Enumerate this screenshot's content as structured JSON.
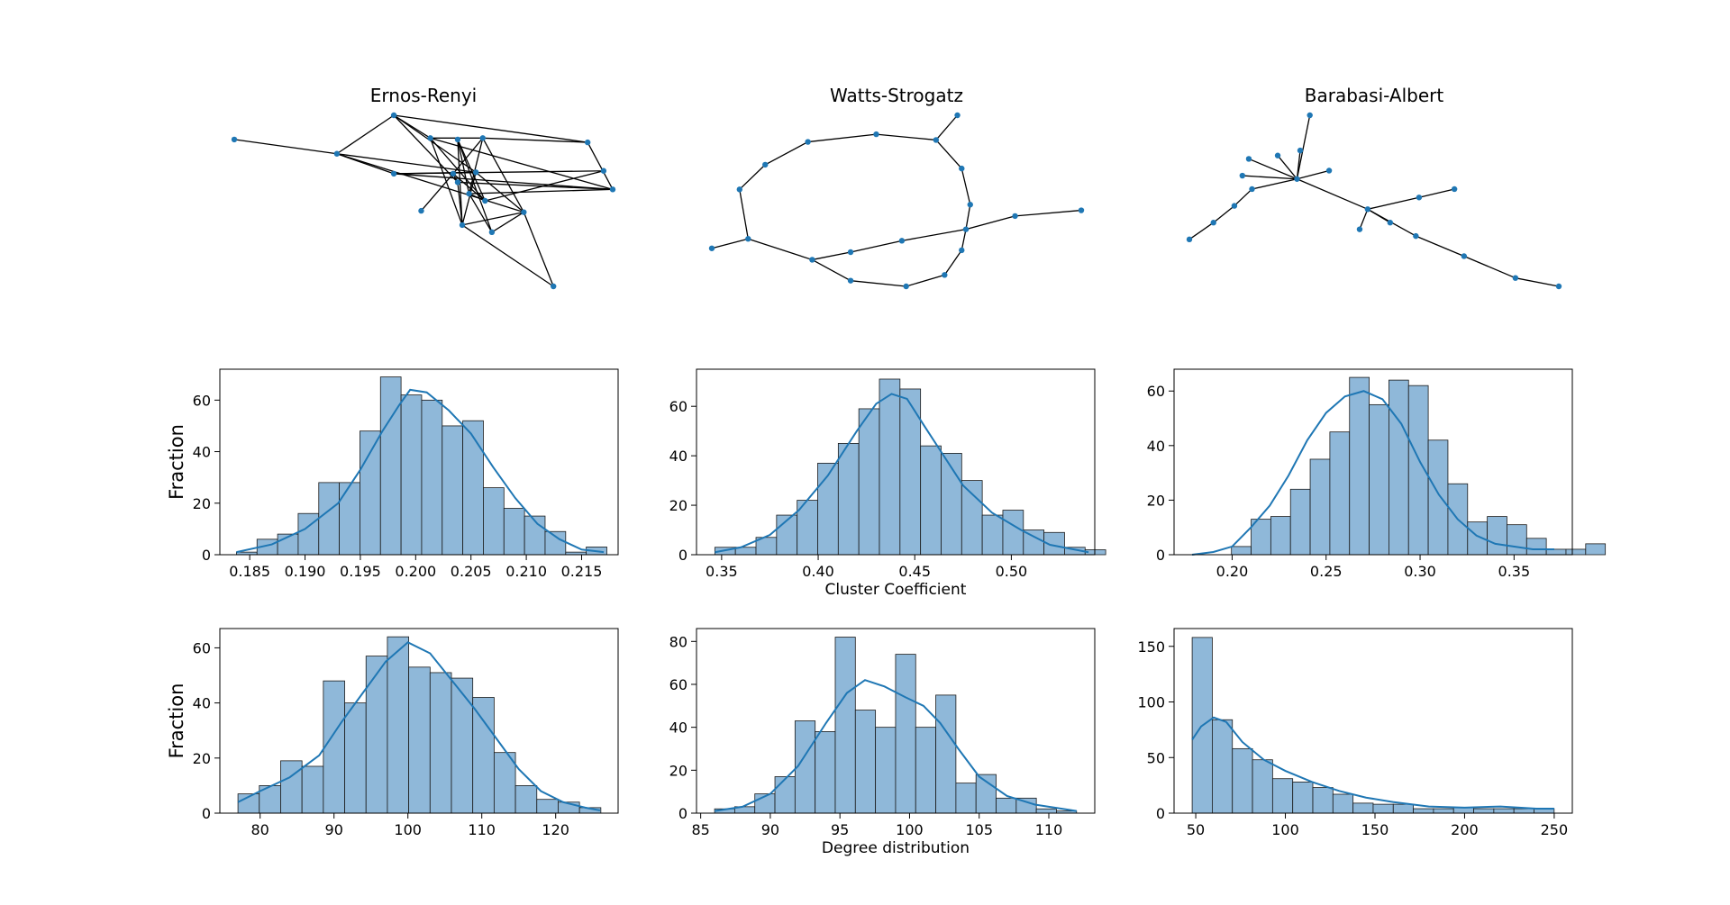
{
  "networks": [
    {
      "title": "Ernos-Renyi",
      "nodes": [
        [
          -1.0,
          0.45
        ],
        [
          -0.55,
          0.35
        ],
        [
          -0.3,
          0.62
        ],
        [
          -0.14,
          0.46
        ],
        [
          -0.02,
          0.45
        ],
        [
          0.09,
          0.46
        ],
        [
          -0.3,
          0.21
        ],
        [
          -0.04,
          0.21
        ],
        [
          0.06,
          0.22
        ],
        [
          -0.02,
          0.15
        ],
        [
          0.03,
          0.07
        ],
        [
          0.1,
          0.02
        ],
        [
          0.27,
          -0.06
        ],
        [
          0.55,
          0.43
        ],
        [
          0.62,
          0.23
        ],
        [
          0.66,
          0.1
        ],
        [
          -0.18,
          -0.05
        ],
        [
          0.0,
          -0.15
        ],
        [
          0.13,
          -0.2
        ],
        [
          0.4,
          -0.58
        ]
      ],
      "edges": [
        [
          0,
          1
        ],
        [
          1,
          2
        ],
        [
          1,
          6
        ],
        [
          1,
          8
        ],
        [
          1,
          12
        ],
        [
          2,
          3
        ],
        [
          2,
          9
        ],
        [
          2,
          13
        ],
        [
          2,
          8
        ],
        [
          3,
          5
        ],
        [
          3,
          11
        ],
        [
          3,
          17
        ],
        [
          3,
          15
        ],
        [
          4,
          11
        ],
        [
          4,
          18
        ],
        [
          4,
          10
        ],
        [
          4,
          17
        ],
        [
          5,
          13
        ],
        [
          5,
          7
        ],
        [
          5,
          12
        ],
        [
          5,
          10
        ],
        [
          6,
          14
        ],
        [
          6,
          8
        ],
        [
          6,
          15
        ],
        [
          7,
          9
        ],
        [
          7,
          16
        ],
        [
          7,
          11
        ],
        [
          8,
          17
        ],
        [
          8,
          12
        ],
        [
          9,
          15
        ],
        [
          9,
          17
        ],
        [
          10,
          11
        ],
        [
          10,
          18
        ],
        [
          11,
          14
        ],
        [
          12,
          18
        ],
        [
          12,
          19
        ],
        [
          12,
          17
        ],
        [
          13,
          15
        ],
        [
          17,
          19
        ],
        [
          10,
          15
        ]
      ]
    },
    {
      "title": "Watts-Strogatz",
      "nodes": [
        [
          -0.95,
          -0.14
        ],
        [
          -0.78,
          -0.09
        ],
        [
          -0.82,
          0.17
        ],
        [
          -0.7,
          0.3
        ],
        [
          -0.5,
          0.42
        ],
        [
          -0.18,
          0.46
        ],
        [
          0.1,
          0.43
        ],
        [
          0.2,
          0.56
        ],
        [
          0.22,
          0.28
        ],
        [
          0.26,
          0.09
        ],
        [
          0.24,
          -0.04
        ],
        [
          0.22,
          -0.15
        ],
        [
          0.14,
          -0.28
        ],
        [
          -0.04,
          -0.34
        ],
        [
          -0.3,
          -0.31
        ],
        [
          -0.48,
          -0.2
        ],
        [
          -0.3,
          -0.16
        ],
        [
          -0.06,
          -0.1
        ],
        [
          0.47,
          0.03
        ],
        [
          0.78,
          0.06
        ]
      ],
      "edges": [
        [
          0,
          1
        ],
        [
          1,
          2
        ],
        [
          2,
          3
        ],
        [
          3,
          4
        ],
        [
          4,
          5
        ],
        [
          5,
          6
        ],
        [
          6,
          7
        ],
        [
          6,
          8
        ],
        [
          8,
          9
        ],
        [
          9,
          10
        ],
        [
          10,
          11
        ],
        [
          11,
          12
        ],
        [
          12,
          13
        ],
        [
          13,
          14
        ],
        [
          14,
          15
        ],
        [
          15,
          1
        ],
        [
          15,
          16
        ],
        [
          16,
          17
        ],
        [
          17,
          10
        ],
        [
          10,
          18
        ],
        [
          18,
          19
        ]
      ]
    },
    {
      "title": "Barabasi-Albert",
      "nodes": [
        [
          -0.08,
          0.16
        ],
        [
          -0.38,
          0.28
        ],
        [
          -0.42,
          0.18
        ],
        [
          -0.2,
          0.3
        ],
        [
          -0.36,
          0.1
        ],
        [
          -0.47,
          0.0
        ],
        [
          -0.6,
          -0.1
        ],
        [
          -0.75,
          -0.2
        ],
        [
          0.0,
          0.54
        ],
        [
          -0.06,
          0.33
        ],
        [
          0.12,
          0.21
        ],
        [
          0.36,
          -0.02
        ],
        [
          0.31,
          -0.14
        ],
        [
          0.5,
          -0.1
        ],
        [
          0.68,
          0.05
        ],
        [
          0.9,
          0.1
        ],
        [
          0.66,
          -0.18
        ],
        [
          0.96,
          -0.3
        ],
        [
          1.28,
          -0.43
        ],
        [
          1.55,
          -0.48
        ]
      ],
      "edges": [
        [
          0,
          1
        ],
        [
          0,
          2
        ],
        [
          0,
          3
        ],
        [
          0,
          4
        ],
        [
          4,
          5
        ],
        [
          5,
          6
        ],
        [
          6,
          7
        ],
        [
          0,
          8
        ],
        [
          0,
          9
        ],
        [
          0,
          10
        ],
        [
          0,
          11
        ],
        [
          11,
          12
        ],
        [
          11,
          13
        ],
        [
          11,
          14
        ],
        [
          14,
          15
        ],
        [
          11,
          16
        ],
        [
          16,
          17
        ],
        [
          17,
          18
        ],
        [
          18,
          19
        ]
      ]
    }
  ],
  "chart_data": [
    {
      "type": "histogram",
      "row": 1,
      "col": 1,
      "bin_start": 0.1838,
      "bin_width": 0.00186,
      "counts": [
        1,
        6,
        8,
        16,
        28,
        28,
        48,
        69,
        62,
        60,
        50,
        52,
        26,
        18,
        15,
        9,
        1,
        3
      ],
      "kde": [
        [
          0.1838,
          1
        ],
        [
          0.187,
          4
        ],
        [
          0.19,
          10
        ],
        [
          0.193,
          20
        ],
        [
          0.195,
          33
        ],
        [
          0.197,
          48
        ],
        [
          0.1985,
          58
        ],
        [
          0.1995,
          64
        ],
        [
          0.201,
          63
        ],
        [
          0.203,
          56
        ],
        [
          0.205,
          47
        ],
        [
          0.207,
          34
        ],
        [
          0.209,
          22
        ],
        [
          0.211,
          12
        ],
        [
          0.213,
          6
        ],
        [
          0.215,
          2
        ],
        [
          0.217,
          1
        ]
      ],
      "xlim": [
        0.1823,
        0.2183
      ],
      "ylim": [
        0,
        72
      ],
      "xticks": [
        0.185,
        0.19,
        0.195,
        0.2,
        0.205,
        0.21,
        0.215
      ],
      "xtick_labels": [
        "0.185",
        "0.190",
        "0.195",
        "0.200",
        "0.205",
        "0.210",
        "0.215"
      ],
      "yticks": [
        0,
        20,
        40,
        60
      ],
      "ytick_labels": [
        "0",
        "20",
        "40",
        "60"
      ],
      "xlabel": "",
      "ylabel": "Fraction"
    },
    {
      "type": "histogram",
      "row": 1,
      "col": 2,
      "bin_start": 0.3465,
      "bin_width": 0.01065,
      "counts": [
        3,
        3,
        7,
        16,
        22,
        37,
        45,
        59,
        71,
        67,
        44,
        41,
        30,
        16,
        18,
        10,
        9,
        3,
        2
      ],
      "kde": [
        [
          0.3465,
          1
        ],
        [
          0.36,
          3
        ],
        [
          0.375,
          8
        ],
        [
          0.39,
          18
        ],
        [
          0.405,
          32
        ],
        [
          0.42,
          50
        ],
        [
          0.43,
          61
        ],
        [
          0.438,
          65
        ],
        [
          0.446,
          63
        ],
        [
          0.455,
          52
        ],
        [
          0.465,
          40
        ],
        [
          0.475,
          28
        ],
        [
          0.49,
          17
        ],
        [
          0.505,
          10
        ],
        [
          0.52,
          4
        ],
        [
          0.54,
          1
        ]
      ],
      "xlim": [
        0.337,
        0.5432
      ],
      "ylim": [
        0,
        75
      ],
      "xticks": [
        0.35,
        0.4,
        0.45,
        0.5
      ],
      "xtick_labels": [
        "0.35",
        "0.40",
        "0.45",
        "0.50"
      ],
      "yticks": [
        0,
        20,
        40,
        60
      ],
      "ytick_labels": [
        "0",
        "20",
        "40",
        "60"
      ],
      "xlabel": "Cluster Coefficient",
      "ylabel": ""
    },
    {
      "type": "histogram",
      "row": 1,
      "col": 3,
      "bin_start": 0.1787,
      "bin_width": 0.01047,
      "counts": [
        0,
        0,
        3,
        13,
        14,
        24,
        35,
        45,
        65,
        55,
        64,
        62,
        42,
        26,
        12,
        14,
        11,
        6,
        2,
        2,
        4
      ],
      "kde": [
        [
          0.1787,
          0
        ],
        [
          0.19,
          1
        ],
        [
          0.2,
          3
        ],
        [
          0.21,
          10
        ],
        [
          0.22,
          18
        ],
        [
          0.23,
          29
        ],
        [
          0.24,
          42
        ],
        [
          0.25,
          52
        ],
        [
          0.26,
          58
        ],
        [
          0.27,
          60
        ],
        [
          0.28,
          57
        ],
        [
          0.29,
          48
        ],
        [
          0.3,
          34
        ],
        [
          0.31,
          22
        ],
        [
          0.32,
          13
        ],
        [
          0.33,
          7
        ],
        [
          0.34,
          4
        ],
        [
          0.36,
          2
        ],
        [
          0.3714,
          2
        ]
      ],
      "xlim": [
        0.1691,
        0.381
      ],
      "ylim": [
        0,
        68
      ],
      "xticks": [
        0.2,
        0.25,
        0.3,
        0.35
      ],
      "xtick_labels": [
        "0.20",
        "0.25",
        "0.30",
        "0.35"
      ],
      "yticks": [
        0,
        20,
        40,
        60
      ],
      "ytick_labels": [
        "0",
        "20",
        "40",
        "60"
      ],
      "xlabel": "",
      "ylabel": ""
    },
    {
      "type": "histogram",
      "row": 2,
      "col": 1,
      "bin_start": 77,
      "bin_width": 2.889,
      "counts": [
        7,
        10,
        19,
        17,
        48,
        40,
        57,
        64,
        53,
        51,
        49,
        42,
        22,
        10,
        5,
        4,
        2
      ],
      "kde": [
        [
          77,
          4
        ],
        [
          80,
          8
        ],
        [
          84,
          13
        ],
        [
          88,
          21
        ],
        [
          91,
          33
        ],
        [
          94,
          44
        ],
        [
          97,
          55
        ],
        [
          100,
          62
        ],
        [
          103,
          58
        ],
        [
          106,
          48
        ],
        [
          109,
          38
        ],
        [
          112,
          27
        ],
        [
          115,
          16
        ],
        [
          118,
          8
        ],
        [
          121,
          4
        ],
        [
          124,
          2
        ],
        [
          126,
          1
        ]
      ],
      "xlim": [
        74.55,
        128.45
      ],
      "ylim": [
        0,
        67
      ],
      "xticks": [
        80,
        90,
        100,
        110,
        120
      ],
      "xtick_labels": [
        "80",
        "90",
        "100",
        "110",
        "120"
      ],
      "yticks": [
        0,
        20,
        40,
        60
      ],
      "ytick_labels": [
        "0",
        "20",
        "40",
        "60"
      ],
      "xlabel": "",
      "ylabel": "Fraction"
    },
    {
      "type": "histogram",
      "row": 2,
      "col": 2,
      "bin_start": 86,
      "bin_width": 1.444,
      "counts": [
        2,
        3,
        9,
        17,
        43,
        38,
        82,
        48,
        40,
        74,
        40,
        55,
        14,
        18,
        7,
        7,
        2,
        1
      ],
      "kde": [
        [
          86,
          1
        ],
        [
          88,
          3
        ],
        [
          90,
          9
        ],
        [
          92,
          22
        ],
        [
          94,
          42
        ],
        [
          95.5,
          56
        ],
        [
          96.8,
          62
        ],
        [
          98.2,
          59
        ],
        [
          99.7,
          54
        ],
        [
          101,
          50
        ],
        [
          102.2,
          42
        ],
        [
          103.5,
          30
        ],
        [
          105,
          17
        ],
        [
          107,
          8
        ],
        [
          109,
          4
        ],
        [
          112,
          1
        ]
      ],
      "xlim": [
        84.7,
        113.3
      ],
      "ylim": [
        0,
        86
      ],
      "xticks": [
        85,
        90,
        95,
        100,
        105,
        110
      ],
      "xtick_labels": [
        "85",
        "90",
        "95",
        "100",
        "105",
        "110"
      ],
      "yticks": [
        0,
        20,
        40,
        60,
        80
      ],
      "ytick_labels": [
        "0",
        "20",
        "40",
        "60",
        "80"
      ],
      "xlabel": "Degree distribution",
      "ylabel": ""
    },
    {
      "type": "histogram",
      "row": 2,
      "col": 3,
      "bin_start": 48,
      "bin_width": 11.22,
      "counts": [
        158,
        84,
        58,
        48,
        31,
        28,
        23,
        17,
        9,
        8,
        8,
        4,
        4,
        5,
        4,
        4,
        4,
        4
      ],
      "kde": [
        [
          48,
          66
        ],
        [
          53,
          78
        ],
        [
          60,
          86
        ],
        [
          67,
          82
        ],
        [
          76,
          64
        ],
        [
          88,
          48
        ],
        [
          100,
          38
        ],
        [
          115,
          28
        ],
        [
          130,
          20
        ],
        [
          145,
          14
        ],
        [
          160,
          10
        ],
        [
          180,
          6
        ],
        [
          200,
          5
        ],
        [
          220,
          6
        ],
        [
          240,
          4
        ],
        [
          250,
          4
        ]
      ],
      "xlim": [
        37.9,
        260.1
      ],
      "ylim": [
        0,
        166
      ],
      "xticks": [
        50,
        100,
        150,
        200,
        250
      ],
      "xtick_labels": [
        "50",
        "100",
        "150",
        "200",
        "250"
      ],
      "yticks": [
        0,
        50,
        100,
        150
      ],
      "ytick_labels": [
        "0",
        "50",
        "100",
        "150"
      ],
      "xlabel": "",
      "ylabel": ""
    }
  ],
  "colors": {
    "node": "#1f77b4",
    "edge": "#000000",
    "bar_fill": "#8fb8d9",
    "bar_edge": "#1a1a1a",
    "kde": "#1f77b4"
  }
}
